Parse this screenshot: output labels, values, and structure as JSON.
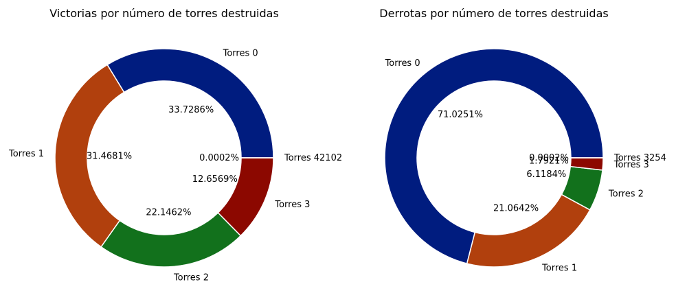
{
  "chart_data": [
    {
      "type": "pie",
      "variant": "donut",
      "title": "Victorias por número de torres destruidas",
      "start_angle_deg": 0,
      "direction": "counterclockwise",
      "slices": [
        {
          "label": "Torres 0",
          "value": 33.7286,
          "pct_label": "33.7286%",
          "color": "#001c7f"
        },
        {
          "label": "Torres 1",
          "value": 31.4681,
          "pct_label": "31.4681%",
          "color": "#b1400d"
        },
        {
          "label": "Torres 2",
          "value": 22.1462,
          "pct_label": "22.1462%",
          "color": "#12711c"
        },
        {
          "label": "Torres 3",
          "value": 12.6569,
          "pct_label": "12.6569%",
          "color": "#8c0800"
        },
        {
          "label": "Torres 42102",
          "value": 0.0002,
          "pct_label": "0.0002%",
          "color": "#591e71"
        }
      ]
    },
    {
      "type": "pie",
      "variant": "donut",
      "title": "Derrotas por número de torres destruidas",
      "start_angle_deg": 0,
      "direction": "counterclockwise",
      "slices": [
        {
          "label": "Torres 0",
          "value": 71.0251,
          "pct_label": "71.0251%",
          "color": "#001c7f"
        },
        {
          "label": "Torres 1",
          "value": 21.0642,
          "pct_label": "21.0642%",
          "color": "#b1400d"
        },
        {
          "label": "Torres 2",
          "value": 6.1184,
          "pct_label": "6.1184%",
          "color": "#12711c"
        },
        {
          "label": "Torres 3",
          "value": 1.7921,
          "pct_label": "1.7921%",
          "color": "#8c0800"
        },
        {
          "label": "Torres 3254",
          "value": 0.0002,
          "pct_label": "0.0002%",
          "color": "#591e71"
        }
      ]
    }
  ]
}
